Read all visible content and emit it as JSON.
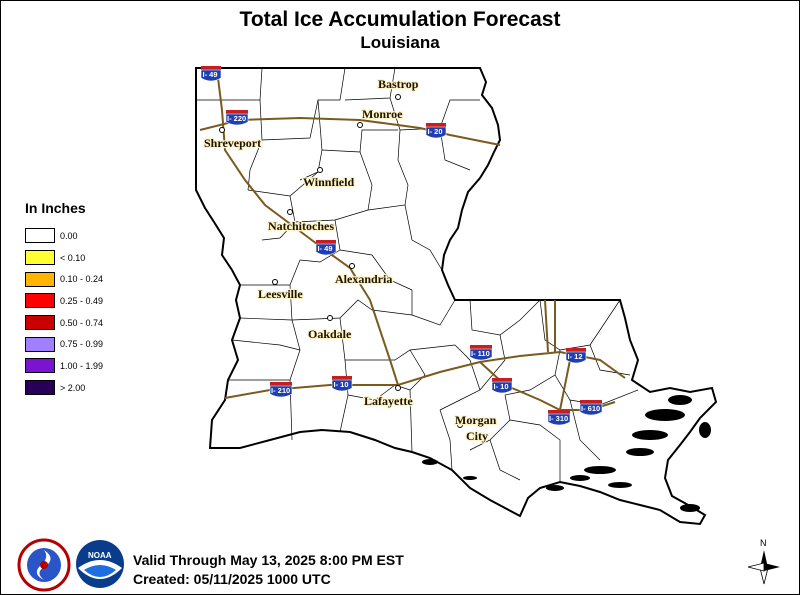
{
  "title": "Total Ice Accumulation Forecast",
  "subtitle": "Louisiana",
  "legend": {
    "title": "In Inches",
    "items": [
      {
        "label": "0.00",
        "color": "#ffffff"
      },
      {
        "label": "< 0.10",
        "color": "#ffff33"
      },
      {
        "label": "0.10 - 0.24",
        "color": "#ffb400"
      },
      {
        "label": "0.25 - 0.49",
        "color": "#ff0000"
      },
      {
        "label": "0.50 - 0.74",
        "color": "#c80000"
      },
      {
        "label": "0.75 - 0.99",
        "color": "#a080ff"
      },
      {
        "label": "1.00 - 1.99",
        "color": "#7a14d2"
      },
      {
        "label": "> 2.00",
        "color": "#28005a"
      }
    ]
  },
  "cities": [
    "Bastrop",
    "Monroe",
    "Shreveport",
    "Winnfield",
    "Natchitoches",
    "Alexandria",
    "Leesville",
    "Oakdale",
    "Lafayette",
    "Morgan",
    "City"
  ],
  "interstates": {
    "i49_north": "I- 49",
    "i220": "I- 220",
    "i20": "I- 20",
    "i49_central": "I- 49",
    "i110": "I- 110",
    "i12": "I- 12",
    "i210": "I- 210",
    "i10_west": "I- 10",
    "i10_east": "I- 10",
    "i310": "I- 310",
    "i610": "I- 610"
  },
  "footer": {
    "valid": "Valid Through May 13, 2025 8:00 PM EST",
    "created": "Created: 05/11/2025 1000 UTC"
  },
  "logos": {
    "nws_text": "NATIONAL WEATHER SERVICE",
    "noaa_text": "NOAA"
  },
  "north_label": "N",
  "colors": {
    "state_outline": "#000000",
    "parish_lines": "#000000",
    "highways": "#7a5a1e",
    "shield_blue": "#1f3fb0",
    "shield_red": "#c81e1e"
  }
}
